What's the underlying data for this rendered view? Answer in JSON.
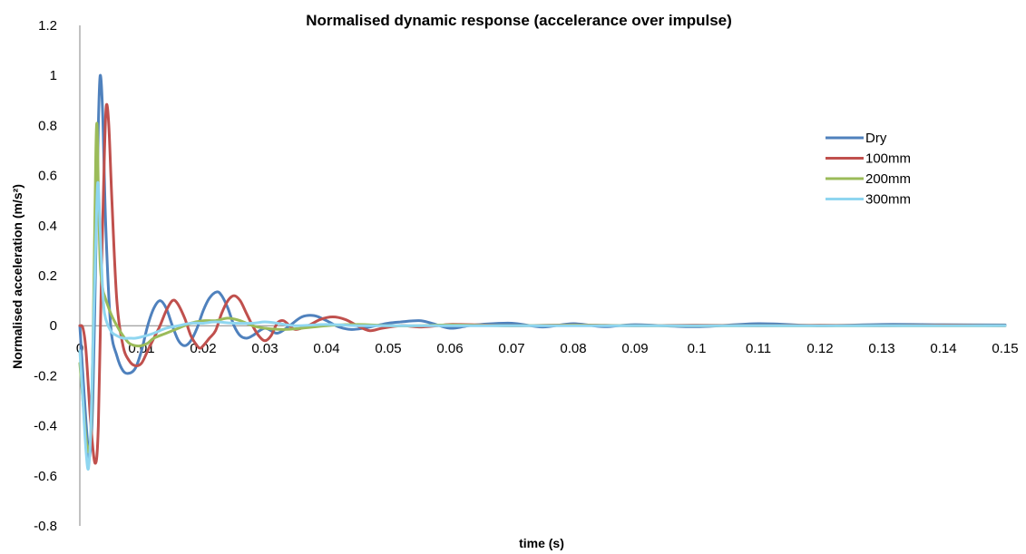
{
  "chart_data": {
    "type": "line",
    "title": "Normalised dynamic response (accelerance over impulse)",
    "xlabel": "time (s)",
    "ylabel": "Normalised acceleration (m/s²)",
    "xlim": [
      0,
      0.15
    ],
    "ylim": [
      -0.8,
      1.2
    ],
    "xticks": [
      "0",
      "0.01",
      "0.02",
      "0.03",
      "0.04",
      "0.05",
      "0.06",
      "0.07",
      "0.08",
      "0.09",
      "0.1",
      "0.11",
      "0.12",
      "0.13",
      "0.14",
      "0.15"
    ],
    "yticks": [
      "-0.8",
      "-0.6",
      "-0.4",
      "-0.2",
      "0",
      "0.2",
      "0.4",
      "0.6",
      "0.8",
      "1",
      "1.2"
    ],
    "grid": false,
    "legend_position": "right",
    "series": [
      {
        "name": "Dry",
        "color": "#4F81BD",
        "points": [
          [
            0,
            0
          ],
          [
            0.0005,
            -0.2
          ],
          [
            0.0012,
            -0.45
          ],
          [
            0.0016,
            -0.52
          ],
          [
            0.0021,
            -0.3
          ],
          [
            0.0026,
            0.3
          ],
          [
            0.003,
            0.8
          ],
          [
            0.0033,
            1.0
          ],
          [
            0.0037,
            0.85
          ],
          [
            0.0042,
            0.4
          ],
          [
            0.005,
            0.0
          ],
          [
            0.006,
            -0.12
          ],
          [
            0.007,
            -0.18
          ],
          [
            0.008,
            -0.19
          ],
          [
            0.009,
            -0.17
          ],
          [
            0.01,
            -0.1
          ],
          [
            0.011,
            0.0
          ],
          [
            0.012,
            0.07
          ],
          [
            0.013,
            0.1
          ],
          [
            0.014,
            0.07
          ],
          [
            0.015,
            0.0
          ],
          [
            0.016,
            -0.06
          ],
          [
            0.017,
            -0.08
          ],
          [
            0.018,
            -0.06
          ],
          [
            0.019,
            -0.01
          ],
          [
            0.02,
            0.06
          ],
          [
            0.021,
            0.11
          ],
          [
            0.0222,
            0.135
          ],
          [
            0.023,
            0.12
          ],
          [
            0.024,
            0.07
          ],
          [
            0.025,
            0.0
          ],
          [
            0.026,
            -0.04
          ],
          [
            0.027,
            -0.05
          ],
          [
            0.028,
            -0.04
          ],
          [
            0.03,
            -0.01
          ],
          [
            0.032,
            -0.03
          ],
          [
            0.034,
            0.0
          ],
          [
            0.036,
            0.035
          ],
          [
            0.038,
            0.04
          ],
          [
            0.04,
            0.02
          ],
          [
            0.042,
            -0.005
          ],
          [
            0.044,
            -0.015
          ],
          [
            0.046,
            -0.01
          ],
          [
            0.048,
            0.0
          ],
          [
            0.05,
            0.01
          ],
          [
            0.052,
            0.015
          ],
          [
            0.055,
            0.02
          ],
          [
            0.057,
            0.01
          ],
          [
            0.06,
            -0.01
          ],
          [
            0.063,
            0.0
          ],
          [
            0.065,
            0.005
          ],
          [
            0.07,
            0.01
          ],
          [
            0.075,
            -0.005
          ],
          [
            0.08,
            0.008
          ],
          [
            0.085,
            -0.004
          ],
          [
            0.09,
            0.004
          ],
          [
            0.1,
            -0.004
          ],
          [
            0.11,
            0.008
          ],
          [
            0.12,
            0.0
          ],
          [
            0.13,
            0.005
          ],
          [
            0.14,
            0.004
          ],
          [
            0.15,
            0.003
          ]
        ]
      },
      {
        "name": "100mm",
        "color": "#C0504D",
        "points": [
          [
            0,
            0
          ],
          [
            0.0005,
            -0.01
          ],
          [
            0.001,
            -0.1
          ],
          [
            0.0018,
            -0.4
          ],
          [
            0.0025,
            -0.55
          ],
          [
            0.003,
            -0.4
          ],
          [
            0.0035,
            0.2
          ],
          [
            0.004,
            0.7
          ],
          [
            0.0043,
            0.88
          ],
          [
            0.0047,
            0.8
          ],
          [
            0.0052,
            0.5
          ],
          [
            0.006,
            0.1
          ],
          [
            0.007,
            -0.08
          ],
          [
            0.008,
            -0.14
          ],
          [
            0.009,
            -0.16
          ],
          [
            0.01,
            -0.15
          ],
          [
            0.011,
            -0.1
          ],
          [
            0.012,
            -0.05
          ],
          [
            0.013,
            0.0
          ],
          [
            0.014,
            0.06
          ],
          [
            0.015,
            0.1
          ],
          [
            0.0158,
            0.09
          ],
          [
            0.017,
            0.03
          ],
          [
            0.018,
            -0.04
          ],
          [
            0.019,
            -0.08
          ],
          [
            0.0195,
            -0.09
          ],
          [
            0.02,
            -0.08
          ],
          [
            0.021,
            -0.05
          ],
          [
            0.022,
            -0.02
          ],
          [
            0.023,
            0.05
          ],
          [
            0.024,
            0.1
          ],
          [
            0.025,
            0.12
          ],
          [
            0.026,
            0.1
          ],
          [
            0.027,
            0.05
          ],
          [
            0.028,
            0.0
          ],
          [
            0.029,
            -0.04
          ],
          [
            0.03,
            -0.06
          ],
          [
            0.031,
            -0.04
          ],
          [
            0.032,
            0.01
          ],
          [
            0.033,
            0.02
          ],
          [
            0.034,
            0.0
          ],
          [
            0.035,
            -0.015
          ],
          [
            0.037,
            0.0
          ],
          [
            0.039,
            0.025
          ],
          [
            0.041,
            0.035
          ],
          [
            0.043,
            0.025
          ],
          [
            0.045,
            0.0
          ],
          [
            0.047,
            -0.02
          ],
          [
            0.049,
            -0.01
          ],
          [
            0.052,
            0.0
          ],
          [
            0.055,
            -0.005
          ],
          [
            0.058,
            0.0
          ],
          [
            0.06,
            0.005
          ],
          [
            0.065,
            0.003
          ],
          [
            0.07,
            0.0
          ],
          [
            0.08,
            0.003
          ],
          [
            0.09,
            0.0
          ],
          [
            0.1,
            0.002
          ],
          [
            0.11,
            0.0
          ],
          [
            0.12,
            0.002
          ],
          [
            0.13,
            0.0
          ],
          [
            0.14,
            0.002
          ],
          [
            0.15,
            0.0
          ]
        ]
      },
      {
        "name": "200mm",
        "color": "#9BBB59",
        "points": [
          [
            0,
            -0.15
          ],
          [
            0.0005,
            -0.3
          ],
          [
            0.001,
            -0.45
          ],
          [
            0.0015,
            -0.5
          ],
          [
            0.0019,
            -0.35
          ],
          [
            0.0023,
            0.2
          ],
          [
            0.0026,
            0.7
          ],
          [
            0.0028,
            0.8
          ],
          [
            0.003,
            0.55
          ],
          [
            0.0033,
            0.25
          ],
          [
            0.0037,
            0.15
          ],
          [
            0.004,
            0.12
          ],
          [
            0.005,
            0.05
          ],
          [
            0.006,
            0.0
          ],
          [
            0.007,
            -0.04
          ],
          [
            0.008,
            -0.07
          ],
          [
            0.009,
            -0.08
          ],
          [
            0.01,
            -0.08
          ],
          [
            0.011,
            -0.07
          ],
          [
            0.012,
            -0.05
          ],
          [
            0.014,
            -0.03
          ],
          [
            0.016,
            -0.01
          ],
          [
            0.018,
            0.01
          ],
          [
            0.02,
            0.02
          ],
          [
            0.022,
            0.02
          ],
          [
            0.024,
            0.03
          ],
          [
            0.026,
            0.02
          ],
          [
            0.028,
            0.0
          ],
          [
            0.03,
            -0.01
          ],
          [
            0.033,
            -0.015
          ],
          [
            0.036,
            -0.01
          ],
          [
            0.04,
            0.0
          ],
          [
            0.045,
            0.005
          ],
          [
            0.05,
            0.0
          ],
          [
            0.055,
            0.0
          ],
          [
            0.06,
            0.003
          ],
          [
            0.07,
            0.0
          ],
          [
            0.08,
            0.002
          ],
          [
            0.09,
            0.0
          ],
          [
            0.1,
            0.0
          ],
          [
            0.11,
            0.0
          ],
          [
            0.12,
            0.0
          ],
          [
            0.13,
            0.0
          ],
          [
            0.14,
            0.0
          ],
          [
            0.15,
            0.0
          ]
        ]
      },
      {
        "name": "300mm",
        "color": "#8FD6F0",
        "points": [
          [
            0,
            -0.1
          ],
          [
            0.0005,
            -0.3
          ],
          [
            0.001,
            -0.5
          ],
          [
            0.0014,
            -0.57
          ],
          [
            0.0018,
            -0.4
          ],
          [
            0.0022,
            0.0
          ],
          [
            0.0026,
            0.35
          ],
          [
            0.0029,
            0.57
          ],
          [
            0.0032,
            0.45
          ],
          [
            0.0036,
            0.2
          ],
          [
            0.004,
            0.05
          ],
          [
            0.005,
            -0.02
          ],
          [
            0.006,
            -0.04
          ],
          [
            0.007,
            -0.05
          ],
          [
            0.008,
            -0.05
          ],
          [
            0.009,
            -0.05
          ],
          [
            0.01,
            -0.045
          ],
          [
            0.012,
            -0.03
          ],
          [
            0.014,
            -0.01
          ],
          [
            0.016,
            0.0
          ],
          [
            0.018,
            0.01
          ],
          [
            0.02,
            0.01
          ],
          [
            0.022,
            0.015
          ],
          [
            0.025,
            0.01
          ],
          [
            0.028,
            0.01
          ],
          [
            0.03,
            0.015
          ],
          [
            0.032,
            0.01
          ],
          [
            0.035,
            0.0
          ],
          [
            0.04,
            0.005
          ],
          [
            0.045,
            0.0
          ],
          [
            0.05,
            0.0
          ],
          [
            0.06,
            0.0
          ],
          [
            0.07,
            0.0
          ],
          [
            0.08,
            0.0
          ],
          [
            0.09,
            0.0
          ],
          [
            0.1,
            0.0
          ],
          [
            0.11,
            0.0
          ],
          [
            0.12,
            0.0
          ],
          [
            0.13,
            0.0
          ],
          [
            0.14,
            0.0
          ],
          [
            0.15,
            0.0
          ]
        ]
      }
    ]
  }
}
